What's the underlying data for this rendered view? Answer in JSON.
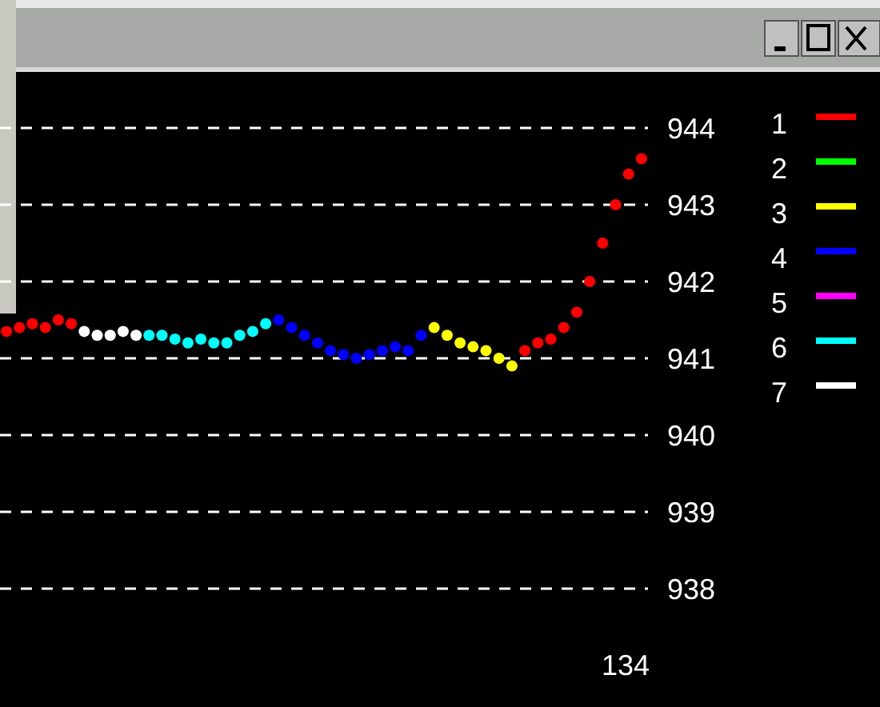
{
  "chart_data": {
    "type": "scatter",
    "categories": [
      null,
      null,
      null,
      null,
      null,
      null,
      null,
      null,
      null,
      null,
      null,
      null,
      null,
      null,
      null,
      null,
      null,
      null,
      null,
      null,
      null,
      null,
      null,
      null,
      null,
      null,
      null,
      null,
      null,
      null,
      null,
      null,
      null,
      null,
      null,
      null,
      null,
      null,
      null,
      null,
      null,
      null,
      null,
      null,
      null,
      null,
      null,
      null,
      null,
      null
    ],
    "series": [
      {
        "name": "1",
        "color": "#ff0000",
        "values": [
          941.35,
          941.4,
          941.45,
          941.4,
          941.5,
          941.45,
          null,
          null,
          null,
          null,
          null,
          null,
          null,
          null,
          null,
          null,
          null,
          null,
          null,
          null,
          null,
          null,
          null,
          null,
          null,
          null,
          null,
          null,
          null,
          null,
          null,
          null,
          null,
          null,
          null,
          null,
          null,
          null,
          null,
          null,
          941.1,
          941.2,
          941.25,
          941.4,
          941.6,
          942.0,
          942.5,
          943.0,
          943.4,
          943.6
        ]
      },
      {
        "name": "2",
        "color": "#00ff00",
        "values": [
          null,
          null,
          null,
          null,
          null,
          null,
          null,
          null,
          null,
          null,
          null,
          null,
          null,
          null,
          null,
          null,
          null,
          null,
          null,
          null,
          null,
          null,
          null,
          null,
          null,
          null,
          null,
          null,
          null,
          null,
          null,
          null,
          null,
          null,
          null,
          null,
          null,
          null,
          null,
          null,
          null,
          null,
          null,
          null,
          null,
          null,
          null,
          null,
          null,
          null
        ]
      },
      {
        "name": "3",
        "color": "#ffff00",
        "values": [
          null,
          null,
          null,
          null,
          null,
          null,
          null,
          null,
          null,
          null,
          null,
          null,
          null,
          null,
          null,
          null,
          null,
          null,
          null,
          null,
          null,
          null,
          null,
          null,
          null,
          null,
          null,
          null,
          null,
          null,
          null,
          null,
          null,
          941.4,
          941.3,
          941.2,
          941.15,
          941.1,
          941.0,
          940.9,
          null,
          null,
          null,
          null,
          null,
          null,
          null,
          null,
          null,
          null
        ]
      },
      {
        "name": "4",
        "color": "#0000ff",
        "values": [
          null,
          null,
          null,
          null,
          null,
          null,
          null,
          null,
          null,
          null,
          null,
          null,
          null,
          null,
          null,
          null,
          null,
          null,
          null,
          null,
          null,
          941.5,
          941.4,
          941.3,
          941.2,
          941.1,
          941.05,
          941.0,
          941.05,
          941.1,
          941.15,
          941.1,
          941.3,
          null,
          null,
          null,
          null,
          null,
          null,
          null,
          null,
          null,
          null,
          null,
          null,
          null,
          null,
          null,
          null,
          null
        ]
      },
      {
        "name": "5",
        "color": "#ff00ff",
        "values": [
          null,
          null,
          null,
          null,
          null,
          null,
          null,
          null,
          null,
          null,
          null,
          null,
          null,
          null,
          null,
          null,
          null,
          null,
          null,
          null,
          null,
          null,
          null,
          null,
          null,
          null,
          null,
          null,
          null,
          null,
          null,
          null,
          null,
          null,
          null,
          null,
          null,
          null,
          null,
          null,
          null,
          null,
          null,
          null,
          null,
          null,
          null,
          null,
          null,
          null
        ]
      },
      {
        "name": "6",
        "color": "#00ffff",
        "values": [
          null,
          null,
          null,
          null,
          null,
          null,
          null,
          null,
          null,
          null,
          null,
          941.3,
          941.3,
          941.25,
          941.2,
          941.25,
          941.2,
          941.2,
          941.3,
          941.35,
          941.45,
          null,
          null,
          null,
          null,
          null,
          null,
          null,
          null,
          null,
          null,
          null,
          null,
          null,
          null,
          null,
          null,
          null,
          null,
          null,
          null,
          null,
          null,
          null,
          null,
          null,
          null,
          null,
          null,
          null
        ]
      },
      {
        "name": "7",
        "color": "#ffffff",
        "values": [
          null,
          null,
          null,
          null,
          null,
          null,
          941.35,
          941.3,
          941.3,
          941.35,
          941.3,
          null,
          null,
          null,
          null,
          null,
          null,
          null,
          null,
          null,
          null,
          null,
          null,
          null,
          null,
          null,
          null,
          null,
          null,
          null,
          null,
          null,
          null,
          null,
          null,
          null,
          null,
          null,
          null,
          null,
          null,
          null,
          null,
          null,
          null,
          null,
          null,
          null,
          null,
          null
        ]
      }
    ],
    "ylim": [
      938,
      944
    ],
    "yticks": [
      938,
      939,
      940,
      941,
      942,
      943,
      944
    ],
    "annotations": [
      "134"
    ],
    "grid": "y",
    "legend": "right",
    "marker": "circle",
    "tick_labels": "y"
  }
}
